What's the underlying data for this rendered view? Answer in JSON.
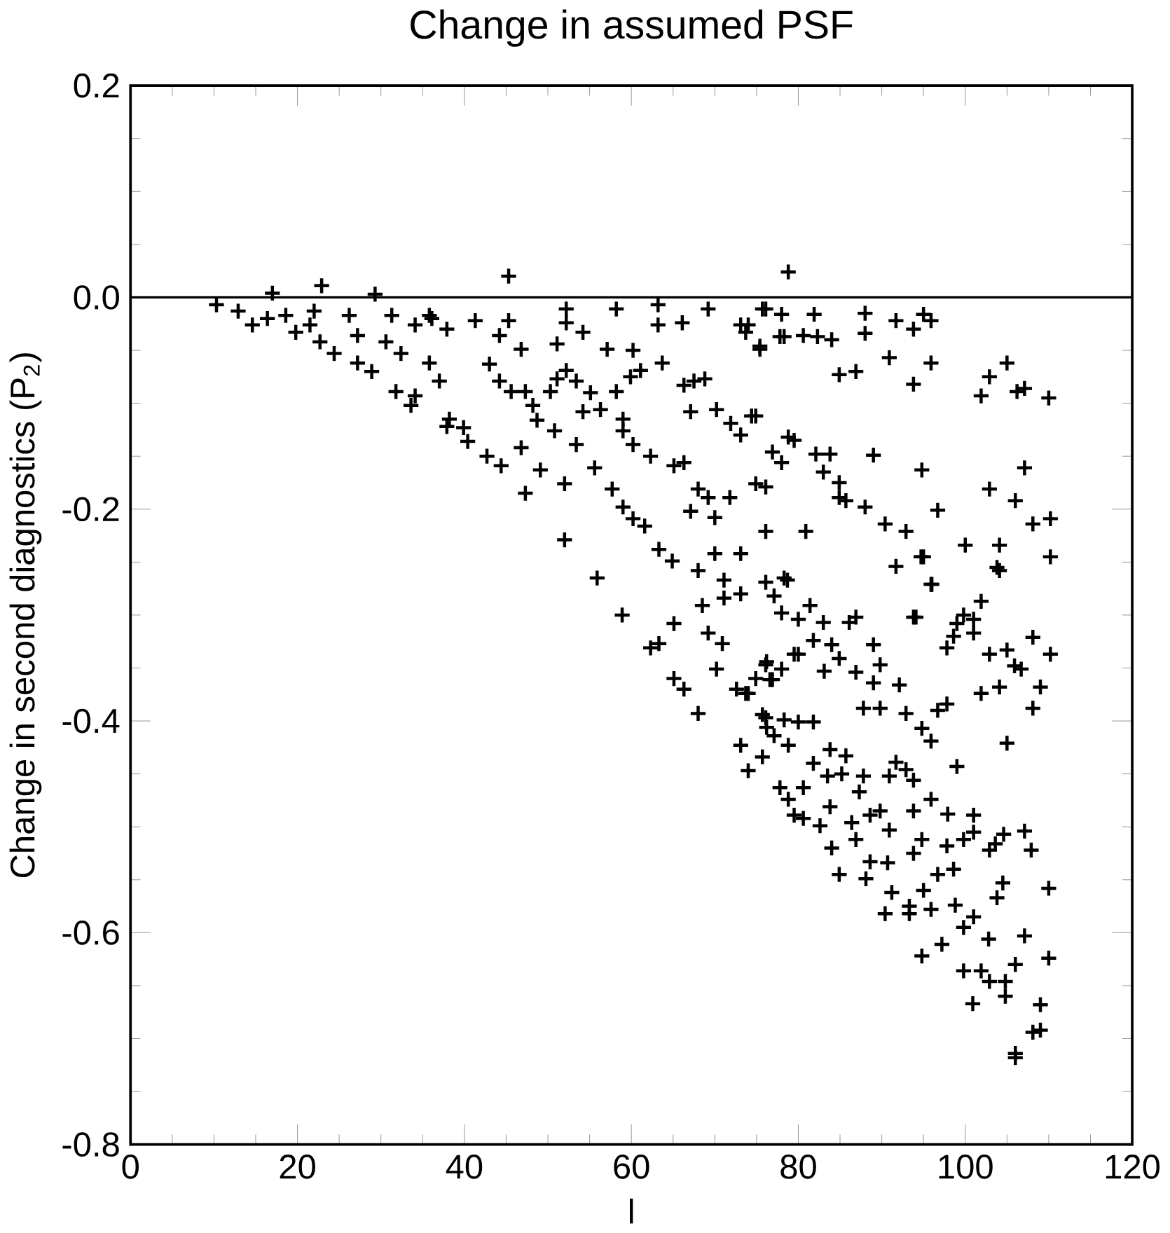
{
  "chart_data": {
    "type": "scatter",
    "title": "Change in assumed PSF",
    "xlabel": "l",
    "ylabel": "Change in second diagnostics (P$_{2}$)",
    "marker": "cross",
    "color": "#000000",
    "xlim": [
      0,
      120
    ],
    "xticks": [
      0,
      20,
      40,
      60,
      80,
      100,
      120
    ],
    "ylim": [
      -0.8,
      0.2
    ],
    "yticks": [
      -0.8,
      -0.6,
      -0.4,
      -0.2,
      {
        "value": 0,
        "label": "0.0"
      },
      0.2
    ],
    "ref_lines": [
      {
        "axis": "y",
        "value": 0
      }
    ],
    "x": [
      10.3,
      12.9,
      14.6,
      16.4,
      19.8,
      22.7,
      24.4,
      27.2,
      28.9,
      31.8,
      33.6,
      34.1,
      37.9,
      40.4,
      47.3,
      52,
      55.9,
      58.9,
      62.3,
      66.3,
      68,
      73.1,
      74,
      79.5,
      17,
      22.9,
      29.3,
      45.3,
      78.8,
      18.6,
      22,
      21.5,
      26.2,
      27.2,
      30.6,
      31.3,
      34.1,
      35.8,
      32.4,
      35.8,
      37,
      37.9,
      38.2,
      39.9,
      42.7,
      44.4,
      46.8,
      36.1,
      41.3,
      45.3,
      52.2,
      52.2,
      58.2,
      63.2,
      63.2,
      66.1,
      69.2,
      76.1,
      78,
      44.2,
      46.8,
      51.1,
      54.2,
      57.1,
      60.2,
      61.1,
      63.7,
      67.5,
      68.8,
      66.3,
      73.1,
      73.7,
      75.4,
      77.8,
      43,
      44.2,
      45.6,
      47.3,
      48.2,
      48.7,
      50.3,
      51.1,
      52.2,
      53.4,
      55.1,
      54.2,
      56.3,
      58.2,
      59.9,
      50.8,
      53.4,
      59,
      59,
      60.2,
      62.3,
      65.1,
      66.3,
      67.1,
      70.2,
      71.9,
      73.1,
      74.4,
      76.9,
      78,
      78.8,
      49.1,
      52,
      55.6,
      57.7,
      59,
      60.2,
      61.6,
      63.3,
      64.9,
      68,
      67.1,
      69.2,
      70,
      71.8,
      68,
      70,
      71.1,
      71.1,
      73.1,
      76.1,
      76.1,
      73.1,
      76.1,
      77.1,
      78,
      78.3,
      63.3,
      65.1,
      68.5,
      69.2,
      70.9,
      65.1,
      70.2,
      72.6,
      74,
      74.9,
      76.1,
      76.9,
      78,
      76.1,
      77.1,
      78.3,
      79.5,
      106,
      106,
      108.1,
      109,
      109,
      100.9,
      104.8,
      102.9,
      104.8,
      99.8,
      101.9,
      106,
      110,
      94.8,
      97.2,
      102.8,
      107.1,
      99.8,
      101,
      90.4,
      93.3,
      93.3,
      95.9,
      98.8,
      103.8,
      110,
      104.5,
      95,
      91.2,
      88.1,
      84.9,
      96.7,
      98.6,
      90.7,
      88.6,
      93.8,
      102.9,
      107.9,
      84,
      97.8,
      103.6,
      86.9,
      99.8,
      94.8,
      104.6,
      107.1,
      101,
      90.9,
      82.6,
      80.6,
      86.4,
      88.6,
      89.8,
      93.8,
      97.9,
      101,
      83.8,
      78.8,
      95.9,
      77.8,
      80.6,
      87.3,
      87.8,
      90.9,
      93.8,
      85.2,
      83.5,
      99,
      92.9,
      91.7,
      81.8,
      75.7,
      85.7,
      83.8,
      78.8,
      95.9,
      105,
      94.8,
      76.2,
      80,
      81.8,
      75.7,
      92.9,
      96.7,
      87.8,
      89.8,
      97.8,
      108.1,
      101.9,
      73.7,
      104.1,
      109,
      92.1,
      89,
      76.6,
      86.9,
      83.1,
      106.7,
      105.9,
      89.8,
      76.2,
      84.9,
      102.9,
      110.2,
      80,
      105,
      84,
      89,
      97.8,
      81.8,
      108.1,
      98.6,
      101,
      99,
      86.1,
      83,
      80,
      93.8,
      101,
      99.8,
      81.4,
      101.9,
      95.9,
      78.7,
      103.8,
      91.7,
      94.7,
      110.2,
      110.2,
      108.1,
      104.1,
      104.1,
      106,
      102.9,
      107.1,
      100,
      96.7,
      95,
      96,
      92.9,
      90.4,
      88,
      85.7,
      84.9,
      84.9,
      83,
      82.1,
      83.8,
      89,
      94.8,
      79.5,
      80.9,
      74.9,
      86.9,
      94.1,
      84.9,
      86.9,
      90.9,
      93.8,
      95.9,
      101.9,
      102.9,
      105,
      106.2,
      107.1,
      110,
      75.4,
      78.3,
      80.6,
      82.3,
      84,
      81.9,
      88,
      88,
      91.7,
      93.8,
      95.9,
      95,
      75.7,
      74,
      74.9
    ],
    "values": [
      -0.007,
      -0.013,
      -0.026,
      -0.02,
      -0.033,
      -0.042,
      -0.053,
      -0.062,
      -0.07,
      -0.089,
      -0.102,
      -0.093,
      -0.122,
      -0.136,
      -0.185,
      -0.229,
      -0.265,
      -0.3,
      -0.331,
      -0.37,
      -0.393,
      -0.423,
      -0.447,
      -0.489,
      0.004,
      0.011,
      0.003,
      0.02,
      0.024,
      -0.017,
      -0.013,
      -0.026,
      -0.017,
      -0.036,
      -0.042,
      -0.017,
      -0.026,
      -0.017,
      -0.053,
      -0.062,
      -0.079,
      -0.03,
      -0.115,
      -0.123,
      -0.15,
      -0.159,
      -0.142,
      -0.02,
      -0.022,
      -0.022,
      -0.011,
      -0.024,
      -0.011,
      -0.007,
      -0.026,
      -0.024,
      -0.011,
      -0.011,
      -0.016,
      -0.036,
      -0.049,
      -0.044,
      -0.033,
      -0.049,
      -0.05,
      -0.069,
      -0.062,
      -0.079,
      -0.077,
      -0.083,
      -0.026,
      -0.033,
      -0.046,
      -0.037,
      -0.063,
      -0.079,
      -0.089,
      -0.089,
      -0.102,
      -0.116,
      -0.089,
      -0.077,
      -0.069,
      -0.079,
      -0.09,
      -0.108,
      -0.106,
      -0.089,
      -0.075,
      -0.126,
      -0.139,
      -0.115,
      -0.126,
      -0.139,
      -0.15,
      -0.159,
      -0.156,
      -0.108,
      -0.106,
      -0.119,
      -0.13,
      -0.112,
      -0.146,
      -0.156,
      -0.132,
      -0.163,
      -0.176,
      -0.161,
      -0.181,
      -0.198,
      -0.209,
      -0.216,
      -0.238,
      -0.249,
      -0.258,
      -0.202,
      -0.189,
      -0.208,
      -0.189,
      -0.181,
      -0.242,
      -0.267,
      -0.284,
      -0.242,
      -0.221,
      -0.179,
      -0.28,
      -0.269,
      -0.282,
      -0.298,
      -0.265,
      -0.327,
      -0.308,
      -0.291,
      -0.317,
      -0.327,
      -0.36,
      -0.351,
      -0.37,
      -0.374,
      -0.36,
      -0.347,
      -0.361,
      -0.351,
      -0.397,
      -0.414,
      -0.399,
      -0.337,
      -0.714,
      -0.718,
      -0.694,
      -0.692,
      -0.668,
      -0.667,
      -0.66,
      -0.646,
      -0.646,
      -0.636,
      -0.636,
      -0.63,
      -0.624,
      -0.622,
      -0.611,
      -0.606,
      -0.603,
      -0.595,
      -0.585,
      -0.582,
      -0.582,
      -0.575,
      -0.578,
      -0.574,
      -0.567,
      -0.558,
      -0.553,
      -0.56,
      -0.562,
      -0.549,
      -0.545,
      -0.545,
      -0.54,
      -0.534,
      -0.533,
      -0.525,
      -0.522,
      -0.522,
      -0.52,
      -0.518,
      -0.516,
      -0.512,
      -0.512,
      -0.512,
      -0.507,
      -0.504,
      -0.505,
      -0.503,
      -0.499,
      -0.492,
      -0.496,
      -0.489,
      -0.485,
      -0.485,
      -0.488,
      -0.489,
      -0.481,
      -0.474,
      -0.474,
      -0.463,
      -0.463,
      -0.467,
      -0.452,
      -0.452,
      -0.456,
      -0.45,
      -0.452,
      -0.443,
      -0.446,
      -0.439,
      -0.44,
      -0.434,
      -0.433,
      -0.427,
      -0.423,
      -0.419,
      -0.421,
      -0.407,
      -0.406,
      -0.401,
      -0.401,
      -0.394,
      -0.393,
      -0.39,
      -0.388,
      -0.388,
      -0.384,
      -0.388,
      -0.374,
      -0.374,
      -0.368,
      -0.368,
      -0.366,
      -0.364,
      -0.361,
      -0.354,
      -0.353,
      -0.351,
      -0.348,
      -0.347,
      -0.344,
      -0.341,
      -0.337,
      -0.337,
      -0.337,
      -0.333,
      -0.328,
      -0.328,
      -0.331,
      -0.324,
      -0.321,
      -0.32,
      -0.317,
      -0.308,
      -0.307,
      -0.307,
      -0.304,
      -0.302,
      -0.304,
      -0.3,
      -0.291,
      -0.287,
      -0.271,
      -0.267,
      -0.255,
      -0.254,
      -0.245,
      -0.245,
      -0.209,
      -0.214,
      -0.234,
      -0.258,
      -0.192,
      -0.181,
      -0.161,
      -0.234,
      -0.201,
      -0.245,
      -0.271,
      -0.221,
      -0.214,
      -0.198,
      -0.192,
      -0.189,
      -0.175,
      -0.165,
      -0.148,
      -0.148,
      -0.149,
      -0.163,
      -0.135,
      -0.221,
      -0.176,
      -0.302,
      -0.302,
      -0.073,
      -0.07,
      -0.057,
      -0.082,
      -0.062,
      -0.093,
      -0.075,
      -0.062,
      -0.089,
      -0.086,
      -0.095,
      -0.049,
      -0.037,
      -0.036,
      -0.037,
      -0.04,
      -0.016,
      -0.034,
      -0.015,
      -0.022,
      -0.03,
      -0.022,
      -0.016,
      -0.011,
      -0.026,
      -0.112
    ]
  }
}
